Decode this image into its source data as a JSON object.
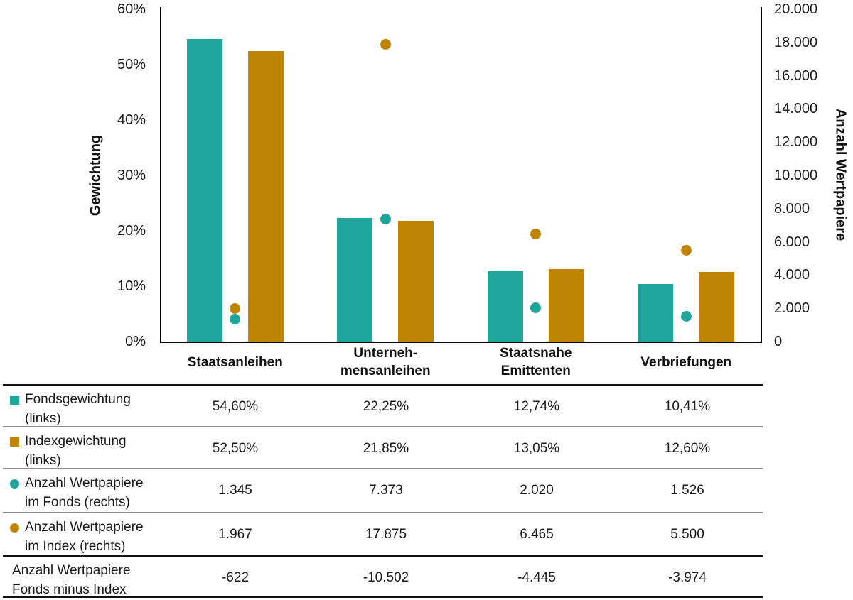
{
  "colors": {
    "teal": "#1FA59A",
    "gold": "#BF8403",
    "text": "#1a1a1a",
    "separator_gray": "#8c8c8c",
    "separator_black": "#111111"
  },
  "chart_data": {
    "type": "bar",
    "subtype": "grouped bars with scatter dots, dual y-axis",
    "categories": [
      {
        "label_lines": [
          "Staatsanleihen"
        ]
      },
      {
        "label_lines": [
          "Unterneh-",
          "mensanleihen"
        ]
      },
      {
        "label_lines": [
          "Staatsnahe",
          "Emittenten"
        ]
      },
      {
        "label_lines": [
          "Verbriefungen"
        ]
      }
    ],
    "series": [
      {
        "name": "Fondsgewichtung (links)",
        "kind": "bar",
        "axis": "left",
        "color_key": "teal",
        "values": [
          54.6,
          22.25,
          12.74,
          10.41
        ]
      },
      {
        "name": "Indexgewichtung (links)",
        "kind": "bar",
        "axis": "left",
        "color_key": "gold",
        "values": [
          52.5,
          21.85,
          13.05,
          12.6
        ]
      },
      {
        "name": "Anzahl Wertpapiere im Fonds (rechts)",
        "kind": "dot",
        "axis": "right",
        "color_key": "teal",
        "values": [
          1345,
          7373,
          2020,
          1526
        ]
      },
      {
        "name": "Anzahl Wertpapiere im Index (rechts)",
        "kind": "dot",
        "axis": "right",
        "color_key": "gold",
        "values": [
          1967,
          17875,
          6465,
          5500
        ]
      }
    ],
    "left_axis": {
      "title": "Gewichtung",
      "min": 0,
      "max": 60,
      "ticks": [
        {
          "v": 60,
          "label": "60%"
        },
        {
          "v": 50,
          "label": "50%"
        },
        {
          "v": 40,
          "label": "40%"
        },
        {
          "v": 30,
          "label": "30%"
        },
        {
          "v": 20,
          "label": "20%"
        },
        {
          "v": 10,
          "label": "10%"
        },
        {
          "v": 0,
          "label": "0%"
        }
      ]
    },
    "right_axis": {
      "title": "Anzahl Wertpapiere",
      "min": 0,
      "max": 20000,
      "ticks": [
        {
          "v": 20000,
          "label": "20.000"
        },
        {
          "v": 18000,
          "label": "18.000"
        },
        {
          "v": 16000,
          "label": "16.000"
        },
        {
          "v": 14000,
          "label": "14.000"
        },
        {
          "v": 12000,
          "label": "12.000"
        },
        {
          "v": 10000,
          "label": "10.000"
        },
        {
          "v": 8000,
          "label": "8.000"
        },
        {
          "v": 6000,
          "label": "6.000"
        },
        {
          "v": 4000,
          "label": "4.000"
        },
        {
          "v": 2000,
          "label": "2.000"
        },
        {
          "v": 0,
          "label": "0"
        }
      ]
    },
    "grid": false,
    "legend_position": "table-below"
  },
  "table": {
    "rows": [
      {
        "marker": "square",
        "color_key": "teal",
        "label_lines": [
          "Fondsgewichtung",
          "(links)"
        ],
        "values": [
          "54,60%",
          "22,25%",
          "12,74%",
          "10,41%"
        ],
        "strong_separator_above": false
      },
      {
        "marker": "square",
        "color_key": "gold",
        "label_lines": [
          "Indexgewichtung",
          "(links)"
        ],
        "values": [
          "52,50%",
          "21,85%",
          "13,05%",
          "12,60%"
        ],
        "strong_separator_above": false
      },
      {
        "marker": "circle",
        "color_key": "teal",
        "label_lines": [
          "Anzahl Wertpapiere",
          "im Fonds (rechts)"
        ],
        "values": [
          "1.345",
          "7.373",
          "2.020",
          "1.526"
        ],
        "strong_separator_above": false
      },
      {
        "marker": "circle",
        "color_key": "gold",
        "label_lines": [
          "Anzahl Wertpapiere",
          "im Index (rechts)"
        ],
        "values": [
          "1.967",
          "17.875",
          "6.465",
          "5.500"
        ],
        "strong_separator_above": false
      },
      {
        "marker": "none",
        "color_key": null,
        "label_lines": [
          "Anzahl Wertpapiere",
          "Fonds minus Index"
        ],
        "values": [
          "-622",
          "-10.502",
          "-4.445",
          "-3.974"
        ],
        "strong_separator_above": true
      }
    ]
  }
}
